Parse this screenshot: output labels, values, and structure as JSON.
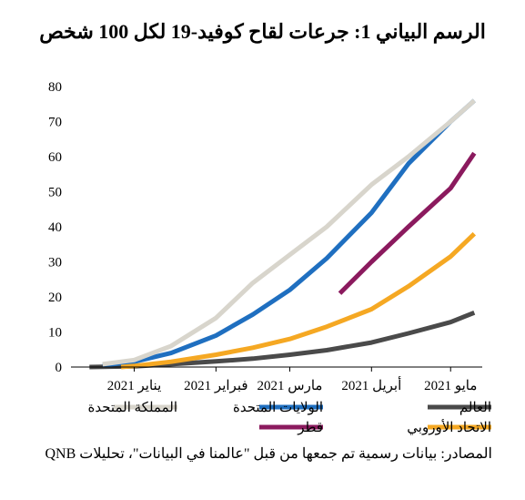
{
  "title": "الرسم البياني 1: جرعات لقاح كوفيد-19 لكل 100 شخص",
  "source": "المصادر: بيانات رسمية تم جمعها من قبل \"عالمنا في البيانات\"، تحليلات QNB",
  "chart_data": {
    "type": "line",
    "title": "الرسم البياني 1: جرعات لقاح كوفيد-19 لكل 100 شخص",
    "xlabel": "",
    "ylabel": "",
    "ylim": [
      0,
      80
    ],
    "yticks": [
      0,
      10,
      20,
      30,
      40,
      50,
      60,
      70,
      80
    ],
    "xticks": [
      {
        "label": "يناير 2021",
        "date": "2021-01-01"
      },
      {
        "label": "فبراير 2021",
        "date": "2021-02-01"
      },
      {
        "label": "مارس 2021",
        "date": "2021-03-01"
      },
      {
        "label": "أبريل 2021",
        "date": "2021-04-01"
      },
      {
        "label": "مايو 2021",
        "date": "2021-05-01"
      }
    ],
    "xlim": [
      "2020-12-08",
      "2021-05-13"
    ],
    "grid": false,
    "legend_position": "bottom",
    "series": [
      {
        "name": "العالم",
        "color": "#4a4a4a",
        "x": [
          "2020-12-15",
          "2021-01-01",
          "2021-01-15",
          "2021-02-01",
          "2021-02-15",
          "2021-03-01",
          "2021-03-15",
          "2021-04-01",
          "2021-04-15",
          "2021-05-01",
          "2021-05-10"
        ],
        "y": [
          0,
          0.2,
          0.8,
          1.6,
          2.4,
          3.5,
          4.8,
          7,
          9.6,
          12.8,
          15.5
        ]
      },
      {
        "name": "الولايات المتحدة",
        "color": "#1f6fc0",
        "x": [
          "2020-12-20",
          "2021-01-01",
          "2021-01-15",
          "2021-02-01",
          "2021-02-15",
          "2021-03-01",
          "2021-03-15",
          "2021-04-01",
          "2021-04-15",
          "2021-05-01",
          "2021-05-10"
        ],
        "y": [
          0.5,
          1.5,
          4,
          9,
          15,
          22,
          31,
          44,
          58,
          70,
          76
        ]
      },
      {
        "name": "المملكة المتحدة",
        "color": "#d8d5cc",
        "x": [
          "2020-12-20",
          "2021-01-01",
          "2021-01-15",
          "2021-02-01",
          "2021-02-15",
          "2021-03-01",
          "2021-03-15",
          "2021-04-01",
          "2021-04-15",
          "2021-05-01",
          "2021-05-10"
        ],
        "y": [
          0.8,
          2,
          6,
          14,
          24,
          32,
          40,
          52,
          60,
          70,
          76
        ]
      },
      {
        "name": "الاتحاد الأوروبي",
        "color": "#f5a823",
        "x": [
          "2020-12-27",
          "2021-01-01",
          "2021-01-15",
          "2021-02-01",
          "2021-02-15",
          "2021-03-01",
          "2021-03-15",
          "2021-04-01",
          "2021-04-15",
          "2021-05-01",
          "2021-05-10"
        ],
        "y": [
          0,
          0.3,
          1.5,
          3.5,
          5.5,
          8,
          11.5,
          16.5,
          23,
          31.5,
          38
        ]
      },
      {
        "name": "قطر",
        "color": "#8b1a5e",
        "x": [
          "2021-03-20",
          "2021-04-01",
          "2021-04-15",
          "2021-05-01",
          "2021-05-10"
        ],
        "y": [
          21,
          30,
          40,
          51,
          61
        ]
      }
    ]
  }
}
